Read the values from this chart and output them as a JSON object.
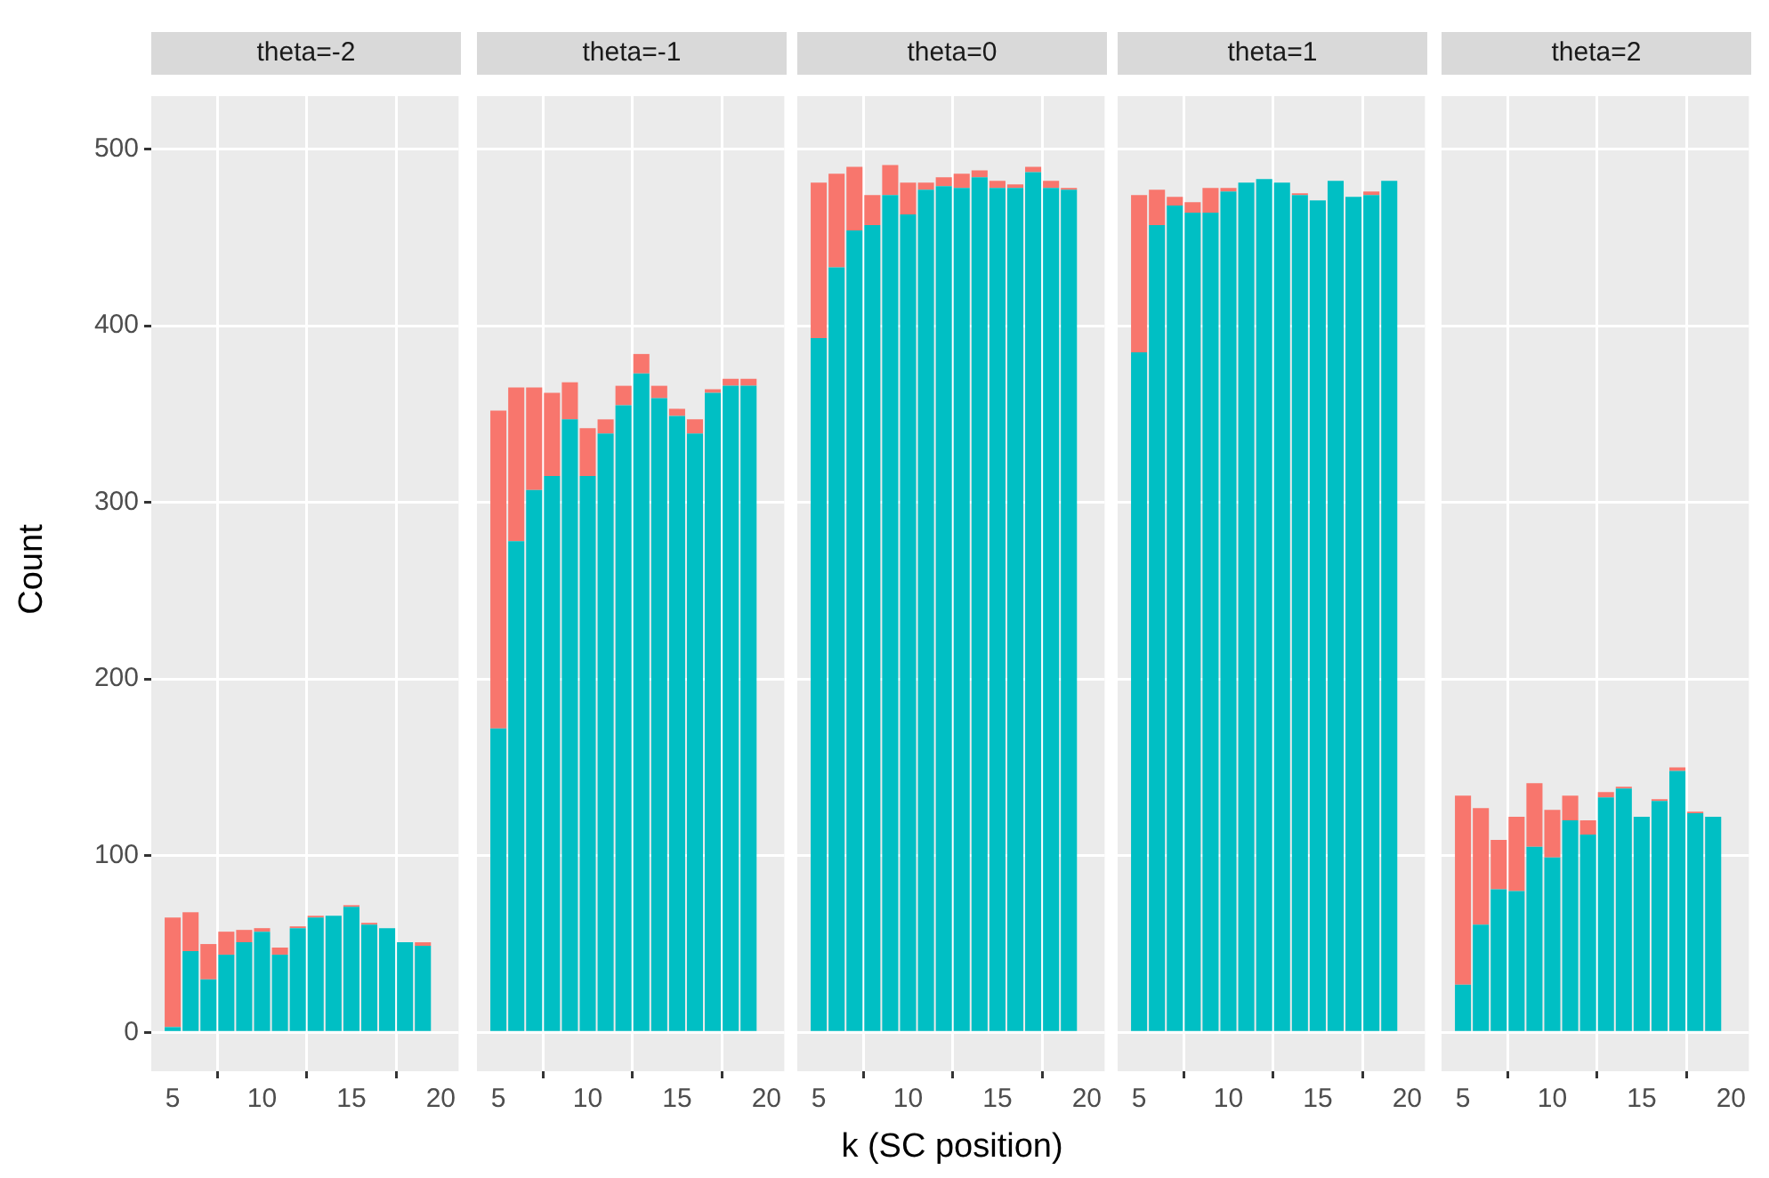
{
  "chart_data": [
    {
      "type": "bar",
      "title": "theta=-2",
      "ylabel": "Count",
      "stacked": true,
      "grid": true,
      "x": [
        5,
        6,
        7,
        8,
        9,
        10,
        11,
        12,
        13,
        14,
        15,
        16,
        17,
        18,
        19
      ],
      "xlim": [
        3.8,
        21.0
      ],
      "xticks": [
        5,
        10,
        15,
        20
      ],
      "ylim": [
        -22,
        530
      ],
      "yticks": [
        0,
        100,
        200,
        300,
        400,
        500
      ],
      "series": [
        {
          "color": "#00bfc4",
          "values": [
            3,
            46,
            30,
            44,
            51,
            57,
            44,
            59,
            65,
            66,
            71,
            61,
            59,
            51,
            49
          ]
        },
        {
          "color": "#f8766d",
          "values": [
            62,
            22,
            20,
            13,
            7,
            2,
            4,
            1,
            1,
            0,
            1,
            1,
            0,
            0,
            2
          ]
        }
      ]
    },
    {
      "type": "bar",
      "title": "theta=-1",
      "stacked": true,
      "grid": true,
      "tick_labels": "x",
      "x": [
        5,
        6,
        7,
        8,
        9,
        10,
        11,
        12,
        13,
        14,
        15,
        16,
        17,
        18,
        19
      ],
      "xlim": [
        3.8,
        21.0
      ],
      "xticks": [
        5,
        10,
        15,
        20
      ],
      "ylim": [
        -22,
        530
      ],
      "yticks": [
        0,
        100,
        200,
        300,
        400,
        500
      ],
      "series": [
        {
          "color": "#00bfc4",
          "values": [
            172,
            278,
            307,
            315,
            347,
            315,
            339,
            355,
            373,
            359,
            349,
            339,
            362,
            366,
            366
          ]
        },
        {
          "color": "#f8766d",
          "values": [
            180,
            87,
            58,
            47,
            21,
            27,
            8,
            11,
            11,
            7,
            4,
            8,
            2,
            4,
            4
          ]
        }
      ]
    },
    {
      "type": "bar",
      "title": "theta=0",
      "xlabel": "k (SC position)",
      "stacked": true,
      "grid": true,
      "tick_labels": "x",
      "x": [
        5,
        6,
        7,
        8,
        9,
        10,
        11,
        12,
        13,
        14,
        15,
        16,
        17,
        18,
        19
      ],
      "xlim": [
        3.8,
        21.0
      ],
      "xticks": [
        5,
        10,
        15,
        20
      ],
      "ylim": [
        -22,
        530
      ],
      "yticks": [
        0,
        100,
        200,
        300,
        400,
        500
      ],
      "series": [
        {
          "color": "#00bfc4",
          "values": [
            393,
            433,
            454,
            457,
            474,
            463,
            477,
            479,
            478,
            484,
            478,
            478,
            487,
            478,
            477
          ]
        },
        {
          "color": "#f8766d",
          "values": [
            88,
            53,
            36,
            17,
            17,
            18,
            4,
            5,
            8,
            4,
            4,
            2,
            3,
            4,
            1
          ]
        }
      ]
    },
    {
      "type": "bar",
      "title": "theta=1",
      "stacked": true,
      "grid": true,
      "tick_labels": "x",
      "x": [
        5,
        6,
        7,
        8,
        9,
        10,
        11,
        12,
        13,
        14,
        15,
        16,
        17,
        18,
        19
      ],
      "xlim": [
        3.8,
        21.0
      ],
      "xticks": [
        5,
        10,
        15,
        20
      ],
      "ylim": [
        -22,
        530
      ],
      "yticks": [
        0,
        100,
        200,
        300,
        400,
        500
      ],
      "series": [
        {
          "color": "#00bfc4",
          "values": [
            385,
            457,
            468,
            464,
            464,
            476,
            481,
            483,
            481,
            474,
            471,
            482,
            473,
            474,
            482
          ]
        },
        {
          "color": "#f8766d",
          "values": [
            89,
            20,
            5,
            6,
            14,
            2,
            0,
            0,
            0,
            1,
            0,
            0,
            0,
            2,
            0
          ]
        }
      ]
    },
    {
      "type": "bar",
      "title": "theta=2",
      "stacked": true,
      "grid": true,
      "tick_labels": "x",
      "x": [
        5,
        6,
        7,
        8,
        9,
        10,
        11,
        12,
        13,
        14,
        15,
        16,
        17,
        18,
        19
      ],
      "xlim": [
        3.8,
        21.0
      ],
      "xticks": [
        5,
        10,
        15,
        20
      ],
      "ylim": [
        -22,
        530
      ],
      "yticks": [
        0,
        100,
        200,
        300,
        400,
        500
      ],
      "series": [
        {
          "color": "#00bfc4",
          "values": [
            27,
            61,
            81,
            80,
            105,
            99,
            120,
            112,
            133,
            138,
            122,
            131,
            148,
            124,
            122
          ]
        },
        {
          "color": "#f8766d",
          "values": [
            107,
            66,
            28,
            42,
            36,
            27,
            14,
            8,
            3,
            1,
            0,
            1,
            2,
            1,
            0
          ]
        }
      ]
    }
  ]
}
